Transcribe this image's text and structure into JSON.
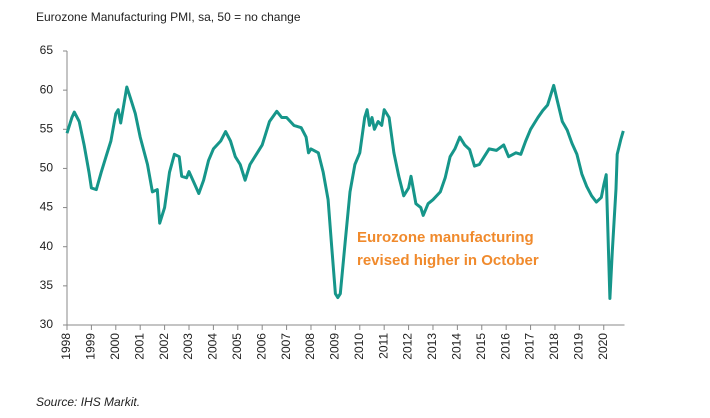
{
  "chart_data": {
    "type": "line",
    "title": "Eurozone Manufacturing PMI, sa, 50 = no change",
    "source": "Source: IHS Markit.",
    "annotation": [
      "Eurozone manufacturing",
      "revised higher in October"
    ],
    "xlim": [
      1998,
      2020.85
    ],
    "xticks": [
      1998,
      1999,
      2000,
      2001,
      2002,
      2003,
      2004,
      2005,
      2006,
      2007,
      2008,
      2009,
      2010,
      2011,
      2012,
      2013,
      2014,
      2015,
      2016,
      2017,
      2018,
      2019,
      2020
    ],
    "ylim": [
      30,
      65
    ],
    "yticks": [
      30,
      35,
      40,
      45,
      50,
      55,
      60,
      65
    ],
    "series": [
      {
        "name": "Eurozone Manufacturing PMI",
        "color": "#16968a",
        "x": [
          1998.0,
          1998.2,
          1998.3,
          1998.5,
          1998.7,
          1998.9,
          1999.0,
          1999.2,
          1999.4,
          1999.6,
          1999.8,
          2000.0,
          2000.1,
          2000.2,
          2000.4,
          2000.45,
          2000.6,
          2000.8,
          2001.0,
          2001.3,
          2001.5,
          2001.7,
          2001.8,
          2002.0,
          2002.2,
          2002.4,
          2002.6,
          2002.7,
          2002.9,
          2003.0,
          2003.2,
          2003.4,
          2003.6,
          2003.8,
          2004.0,
          2004.3,
          2004.5,
          2004.7,
          2004.9,
          2005.1,
          2005.3,
          2005.5,
          2005.8,
          2006.0,
          2006.3,
          2006.6,
          2006.8,
          2007.0,
          2007.3,
          2007.6,
          2007.8,
          2007.9,
          2008.0,
          2008.3,
          2008.5,
          2008.7,
          2008.85,
          2009.0,
          2009.1,
          2009.2,
          2009.4,
          2009.6,
          2009.8,
          2010.0,
          2010.2,
          2010.3,
          2010.4,
          2010.5,
          2010.6,
          2010.75,
          2010.9,
          2011.0,
          2011.2,
          2011.4,
          2011.6,
          2011.8,
          2012.0,
          2012.1,
          2012.3,
          2012.5,
          2012.6,
          2012.8,
          2013.0,
          2013.3,
          2013.5,
          2013.7,
          2013.9,
          2014.1,
          2014.3,
          2014.5,
          2014.7,
          2014.9,
          2015.1,
          2015.3,
          2015.6,
          2015.9,
          2016.1,
          2016.4,
          2016.6,
          2016.8,
          2017.0,
          2017.3,
          2017.5,
          2017.7,
          2017.95,
          2018.1,
          2018.3,
          2018.5,
          2018.7,
          2018.9,
          2019.1,
          2019.3,
          2019.5,
          2019.7,
          2019.9,
          2020.0,
          2020.1,
          2020.25,
          2020.35,
          2020.5,
          2020.55,
          2020.7,
          2020.8
        ],
        "values": [
          54.5,
          56.5,
          57.2,
          56,
          53,
          49.5,
          47.5,
          47.3,
          49.5,
          51.5,
          53.5,
          57,
          57.5,
          55.8,
          59.5,
          60.4,
          59,
          57,
          54,
          50.5,
          47,
          47.3,
          43,
          45,
          49.5,
          51.8,
          51.5,
          49,
          48.8,
          49.6,
          48.2,
          46.8,
          48.5,
          51,
          52.5,
          53.5,
          54.7,
          53.5,
          51.5,
          50.5,
          48.5,
          50.5,
          52,
          53,
          56,
          57.3,
          56.5,
          56.5,
          55.5,
          55.2,
          54,
          52,
          52.5,
          52,
          49.5,
          46,
          40,
          34,
          33.5,
          34,
          40.5,
          47,
          50.5,
          52,
          56.5,
          57.5,
          55.5,
          56.5,
          55,
          56,
          55.5,
          57.5,
          56.5,
          52,
          49,
          46.5,
          47.5,
          49,
          45.5,
          45,
          44,
          45.5,
          46,
          47,
          48.8,
          51.5,
          52.5,
          54,
          53,
          52.4,
          50.3,
          50.5,
          51.5,
          52.5,
          52.3,
          53,
          51.5,
          52,
          51.8,
          53.5,
          55,
          56.5,
          57.4,
          58.1,
          60.6,
          58.6,
          56,
          54.9,
          53.2,
          51.8,
          49.3,
          47.7,
          46.5,
          45.7,
          46.3,
          47.9,
          49.2,
          33.4,
          39.4,
          47.4,
          51.8,
          53.7,
          54.8
        ]
      }
    ]
  }
}
